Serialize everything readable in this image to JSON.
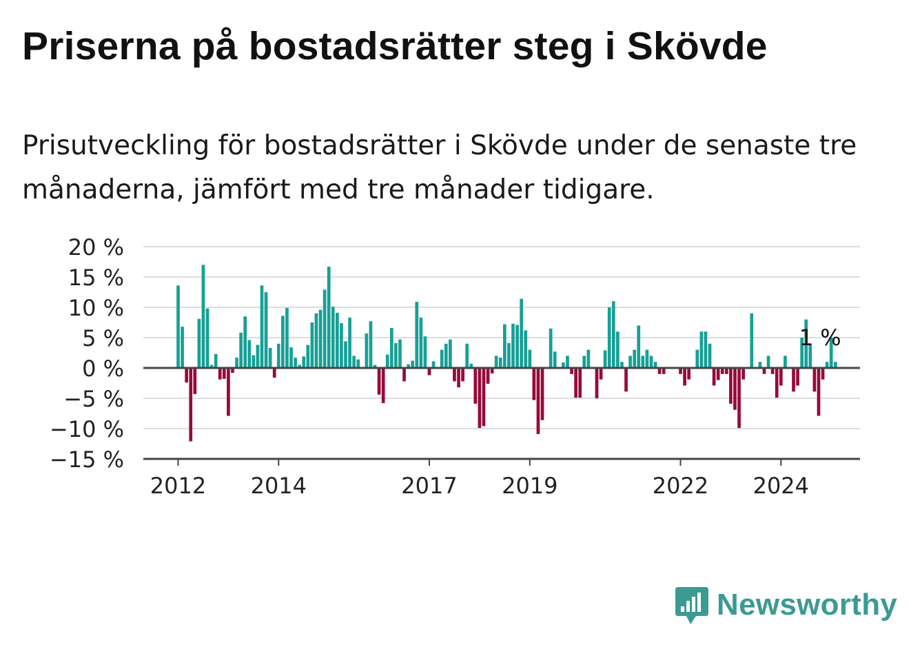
{
  "header": {
    "title": "Priserna på bostadsrätter steg i Skövde",
    "subtitle": "Prisutveckling för bostadsrätter i Skövde under de senaste tre månaderna, jämfört med tre månader tidigare."
  },
  "brand": {
    "name": "Newsworthy",
    "logo_icon": "bar-chart-speech-bubble-icon",
    "color": "#3b9a94"
  },
  "colors": {
    "positive": "#17a096",
    "negative": "#960a3c",
    "grid": "#dddddd",
    "axis": "#444444"
  },
  "chart_data": {
    "type": "bar",
    "title": "",
    "xlabel": "",
    "ylabel": "",
    "ylim": [
      -15,
      20
    ],
    "y_ticks": [
      -15,
      -10,
      -5,
      0,
      5,
      10,
      15,
      20
    ],
    "y_tick_labels": [
      "−15 %",
      "−10 %",
      "−5 %",
      "0 %",
      "5 %",
      "10 %",
      "15 %",
      "20 %"
    ],
    "x_ticks": [
      {
        "year": "2012",
        "index": 0
      },
      {
        "year": "2014",
        "index": 24
      },
      {
        "year": "2017",
        "index": 60
      },
      {
        "year": "2019",
        "index": 84
      },
      {
        "year": "2022",
        "index": 120
      },
      {
        "year": "2024",
        "index": 144
      }
    ],
    "start": "2012-01",
    "frequency": "monthly",
    "grid": true,
    "annotation": {
      "label": "1 %",
      "index": 155
    },
    "values": [
      13.6,
      6.8,
      -2.4,
      -12.1,
      -4.3,
      8.1,
      17.0,
      9.8,
      0.5,
      2.3,
      -1.9,
      -1.8,
      -7.9,
      -0.8,
      1.7,
      5.8,
      8.5,
      4.6,
      2.1,
      3.8,
      13.6,
      12.5,
      3.3,
      -1.6,
      4.0,
      8.6,
      9.9,
      3.4,
      1.7,
      0.5,
      1.9,
      3.8,
      7.5,
      9.0,
      9.6,
      12.9,
      16.7,
      10.1,
      9.1,
      7.4,
      4.4,
      8.3,
      2.0,
      1.4,
      0.0,
      5.7,
      7.7,
      0.5,
      -4.4,
      -5.8,
      2.2,
      6.6,
      4.1,
      4.7,
      -2.2,
      0.6,
      1.2,
      10.9,
      8.3,
      5.2,
      -1.2,
      1.1,
      0.0,
      3.0,
      4.0,
      4.7,
      -2.2,
      -3.2,
      -2.2,
      4.0,
      0.7,
      -5.9,
      -9.9,
      -9.6,
      -2.6,
      -0.9,
      2.0,
      1.7,
      7.2,
      4.1,
      7.3,
      7.1,
      11.4,
      6.2,
      3.0,
      -5.3,
      -10.9,
      -8.6,
      0.1,
      6.5,
      2.7,
      0.1,
      0.9,
      2.0,
      -1.0,
      -4.9,
      -4.9,
      2.0,
      3.0,
      0.0,
      -5.0,
      -1.9,
      2.9,
      10.0,
      11.0,
      6.0,
      1.0,
      -3.9,
      2.0,
      3.0,
      7.0,
      2.0,
      3.0,
      2.0,
      1.0,
      -1.0,
      -1.0,
      0.0,
      0.0,
      0.0,
      -1.0,
      -2.9,
      -1.9,
      0.0,
      3.0,
      6.0,
      6.0,
      4.0,
      -2.9,
      -2.0,
      -1.0,
      -1.0,
      -5.9,
      -6.9,
      -9.9,
      -1.9,
      0.0,
      9.0,
      0.0,
      1.0,
      -1.0,
      2.0,
      -1.0,
      -4.9,
      -2.9,
      2.0,
      0.0,
      -3.9,
      -2.9,
      5.0,
      8.0,
      4.0,
      -3.9,
      -7.9,
      -1.9,
      1.0,
      5.0,
      1.0
    ]
  }
}
